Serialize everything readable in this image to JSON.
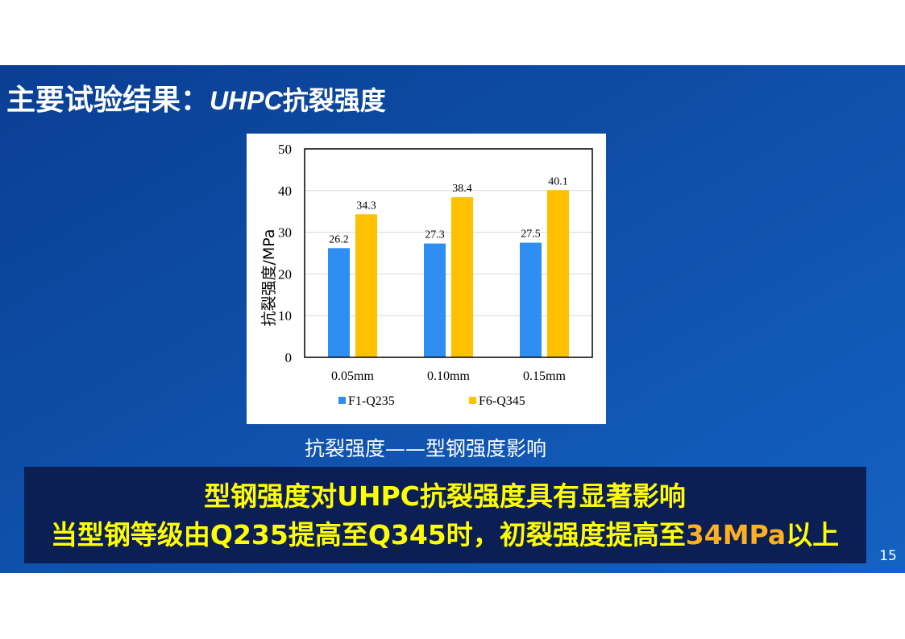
{
  "slide": {
    "title": "主要试验结果：",
    "title_latin": "UHPC",
    "title_rest": "抗裂强度",
    "caption": "抗裂强度——型钢强度影响",
    "conclusion_line1": "型钢强度对UHPC抗裂强度具有显著影响",
    "conclusion_line2": [
      "当型钢等级由Q235提高至Q345时，初裂强度提高至",
      "34MPa",
      "以上"
    ],
    "page_number": "15"
  },
  "chart_data": {
    "type": "bar",
    "y_label": "抗裂强度/MPa",
    "categories": [
      "0.05mm",
      "0.10mm",
      "0.15mm"
    ],
    "series": [
      {
        "name": "F1-Q235",
        "color": "#2f8ef2",
        "values": [
          26.2,
          27.3,
          27.5
        ]
      },
      {
        "name": "F6-Q345",
        "color": "#ffc000",
        "values": [
          34.3,
          38.4,
          40.1
        ]
      }
    ],
    "ylim": [
      0,
      50
    ],
    "yticks": [
      0,
      10,
      20,
      30,
      40,
      50
    ],
    "grid": true,
    "legend": "bottom"
  }
}
